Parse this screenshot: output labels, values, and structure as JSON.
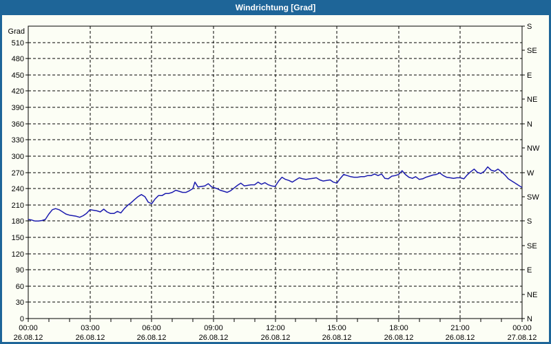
{
  "window": {
    "title": "Windrichtung [Grad]"
  },
  "colors": {
    "titlebar": "#1e6598",
    "border": "#1e6598",
    "background": "#fcfef5",
    "grid": "#000000",
    "frame": "#000000",
    "text": "#000000",
    "line": "#1a1aae"
  },
  "axes": {
    "y_left": {
      "unit_label": "Grad",
      "min": 0,
      "max": 540,
      "step": 30,
      "tick_labels": [
        "0",
        "30",
        "60",
        "90",
        "120",
        "150",
        "180",
        "210",
        "240",
        "270",
        "300",
        "330",
        "360",
        "390",
        "420",
        "450",
        "480",
        "510"
      ]
    },
    "y_right": {
      "step": 45,
      "labels_bottom_to_top": [
        "N",
        "NE",
        "E",
        "SE",
        "S",
        "SW",
        "W",
        "NW",
        "N",
        "NE",
        "E",
        "SE",
        "S"
      ]
    },
    "x": {
      "minor_step_hours": 1,
      "major_step_hours": 3,
      "labels": [
        {
          "time": "00:00",
          "date": "26.08.12"
        },
        {
          "time": "03:00",
          "date": "26.08.12"
        },
        {
          "time": "06:00",
          "date": "26.08.12"
        },
        {
          "time": "09:00",
          "date": "26.08.12"
        },
        {
          "time": "12:00",
          "date": "26.08.12"
        },
        {
          "time": "15:00",
          "date": "26.08.12"
        },
        {
          "time": "18:00",
          "date": "26.08.12"
        },
        {
          "time": "21:00",
          "date": "26.08.12"
        },
        {
          "time": "00:00",
          "date": "27.08.12"
        }
      ]
    }
  },
  "chart_data": {
    "type": "line",
    "title": "Windrichtung [Grad]",
    "ylabel": "Grad",
    "ylim": [
      0,
      540
    ],
    "xlim_hours": [
      0,
      24
    ],
    "x_start": "26.08.12 00:00",
    "x_end": "27.08.12 00:00",
    "grid": "dashed",
    "series": [
      {
        "name": "Windrichtung",
        "color": "#1a1aae",
        "points_hour_deg": [
          [
            0,
            183
          ],
          [
            0.17,
            182
          ],
          [
            0.33,
            180
          ],
          [
            0.5,
            180
          ],
          [
            0.67,
            181
          ],
          [
            0.83,
            183
          ],
          [
            1,
            193
          ],
          [
            1.17,
            201
          ],
          [
            1.33,
            203
          ],
          [
            1.5,
            201
          ],
          [
            1.67,
            197
          ],
          [
            1.83,
            193
          ],
          [
            2,
            191
          ],
          [
            2.17,
            190
          ],
          [
            2.33,
            189
          ],
          [
            2.5,
            187
          ],
          [
            2.67,
            190
          ],
          [
            2.83,
            194
          ],
          [
            3,
            201
          ],
          [
            3.17,
            200
          ],
          [
            3.33,
            199
          ],
          [
            3.5,
            197
          ],
          [
            3.67,
            202
          ],
          [
            3.83,
            197
          ],
          [
            4,
            194
          ],
          [
            4.17,
            194
          ],
          [
            4.33,
            198
          ],
          [
            4.5,
            195
          ],
          [
            4.67,
            203
          ],
          [
            4.83,
            209
          ],
          [
            5,
            214
          ],
          [
            5.17,
            220
          ],
          [
            5.33,
            225
          ],
          [
            5.5,
            229
          ],
          [
            5.67,
            225
          ],
          [
            5.83,
            215
          ],
          [
            6,
            212
          ],
          [
            6.17,
            221
          ],
          [
            6.33,
            227
          ],
          [
            6.5,
            227
          ],
          [
            6.67,
            231
          ],
          [
            6.83,
            231
          ],
          [
            7,
            233
          ],
          [
            7.17,
            237
          ],
          [
            7.33,
            235
          ],
          [
            7.5,
            233
          ],
          [
            7.67,
            233
          ],
          [
            7.83,
            236
          ],
          [
            8,
            240
          ],
          [
            8.1,
            252
          ],
          [
            8.25,
            243
          ],
          [
            8.42,
            244
          ],
          [
            8.58,
            245
          ],
          [
            8.75,
            249
          ],
          [
            8.92,
            243
          ],
          [
            9,
            242
          ],
          [
            9.17,
            240
          ],
          [
            9.33,
            237
          ],
          [
            9.5,
            235
          ],
          [
            9.67,
            233
          ],
          [
            9.83,
            236
          ],
          [
            10,
            241
          ],
          [
            10.17,
            246
          ],
          [
            10.33,
            250
          ],
          [
            10.5,
            245
          ],
          [
            10.67,
            246
          ],
          [
            10.83,
            247
          ],
          [
            11,
            247
          ],
          [
            11.17,
            252
          ],
          [
            11.33,
            248
          ],
          [
            11.5,
            251
          ],
          [
            11.67,
            247
          ],
          [
            11.83,
            245
          ],
          [
            12,
            244
          ],
          [
            12.17,
            254
          ],
          [
            12.33,
            261
          ],
          [
            12.5,
            257
          ],
          [
            12.67,
            255
          ],
          [
            12.83,
            252
          ],
          [
            13,
            256
          ],
          [
            13.17,
            260
          ],
          [
            13.33,
            258
          ],
          [
            13.5,
            257
          ],
          [
            13.67,
            258
          ],
          [
            13.83,
            259
          ],
          [
            14,
            260
          ],
          [
            14.17,
            256
          ],
          [
            14.33,
            254
          ],
          [
            14.5,
            255
          ],
          [
            14.67,
            256
          ],
          [
            14.83,
            252
          ],
          [
            15,
            250
          ],
          [
            15.17,
            259
          ],
          [
            15.33,
            266
          ],
          [
            15.5,
            264
          ],
          [
            15.67,
            262
          ],
          [
            15.83,
            261
          ],
          [
            16,
            261
          ],
          [
            16.17,
            262
          ],
          [
            16.33,
            262
          ],
          [
            16.5,
            264
          ],
          [
            16.67,
            264
          ],
          [
            16.83,
            267
          ],
          [
            17,
            264
          ],
          [
            17.17,
            267
          ],
          [
            17.33,
            259
          ],
          [
            17.5,
            258
          ],
          [
            17.67,
            263
          ],
          [
            17.83,
            264
          ],
          [
            18,
            266
          ],
          [
            18.17,
            273
          ],
          [
            18.33,
            266
          ],
          [
            18.5,
            261
          ],
          [
            18.67,
            259
          ],
          [
            18.83,
            262
          ],
          [
            19,
            257
          ],
          [
            19.17,
            258
          ],
          [
            19.33,
            261
          ],
          [
            19.5,
            263
          ],
          [
            19.67,
            265
          ],
          [
            19.83,
            266
          ],
          [
            20,
            269
          ],
          [
            20.17,
            264
          ],
          [
            20.33,
            261
          ],
          [
            20.5,
            260
          ],
          [
            20.67,
            259
          ],
          [
            20.83,
            260
          ],
          [
            21,
            260
          ],
          [
            21.17,
            258
          ],
          [
            21.33,
            265
          ],
          [
            21.5,
            271
          ],
          [
            21.67,
            276
          ],
          [
            21.83,
            270
          ],
          [
            22,
            268
          ],
          [
            22.17,
            272
          ],
          [
            22.33,
            280
          ],
          [
            22.5,
            274
          ],
          [
            22.67,
            272
          ],
          [
            22.83,
            276
          ],
          [
            23,
            271
          ],
          [
            23.17,
            265
          ],
          [
            23.33,
            258
          ],
          [
            23.5,
            254
          ],
          [
            23.67,
            250
          ],
          [
            23.83,
            246
          ],
          [
            24,
            242
          ]
        ]
      }
    ]
  }
}
